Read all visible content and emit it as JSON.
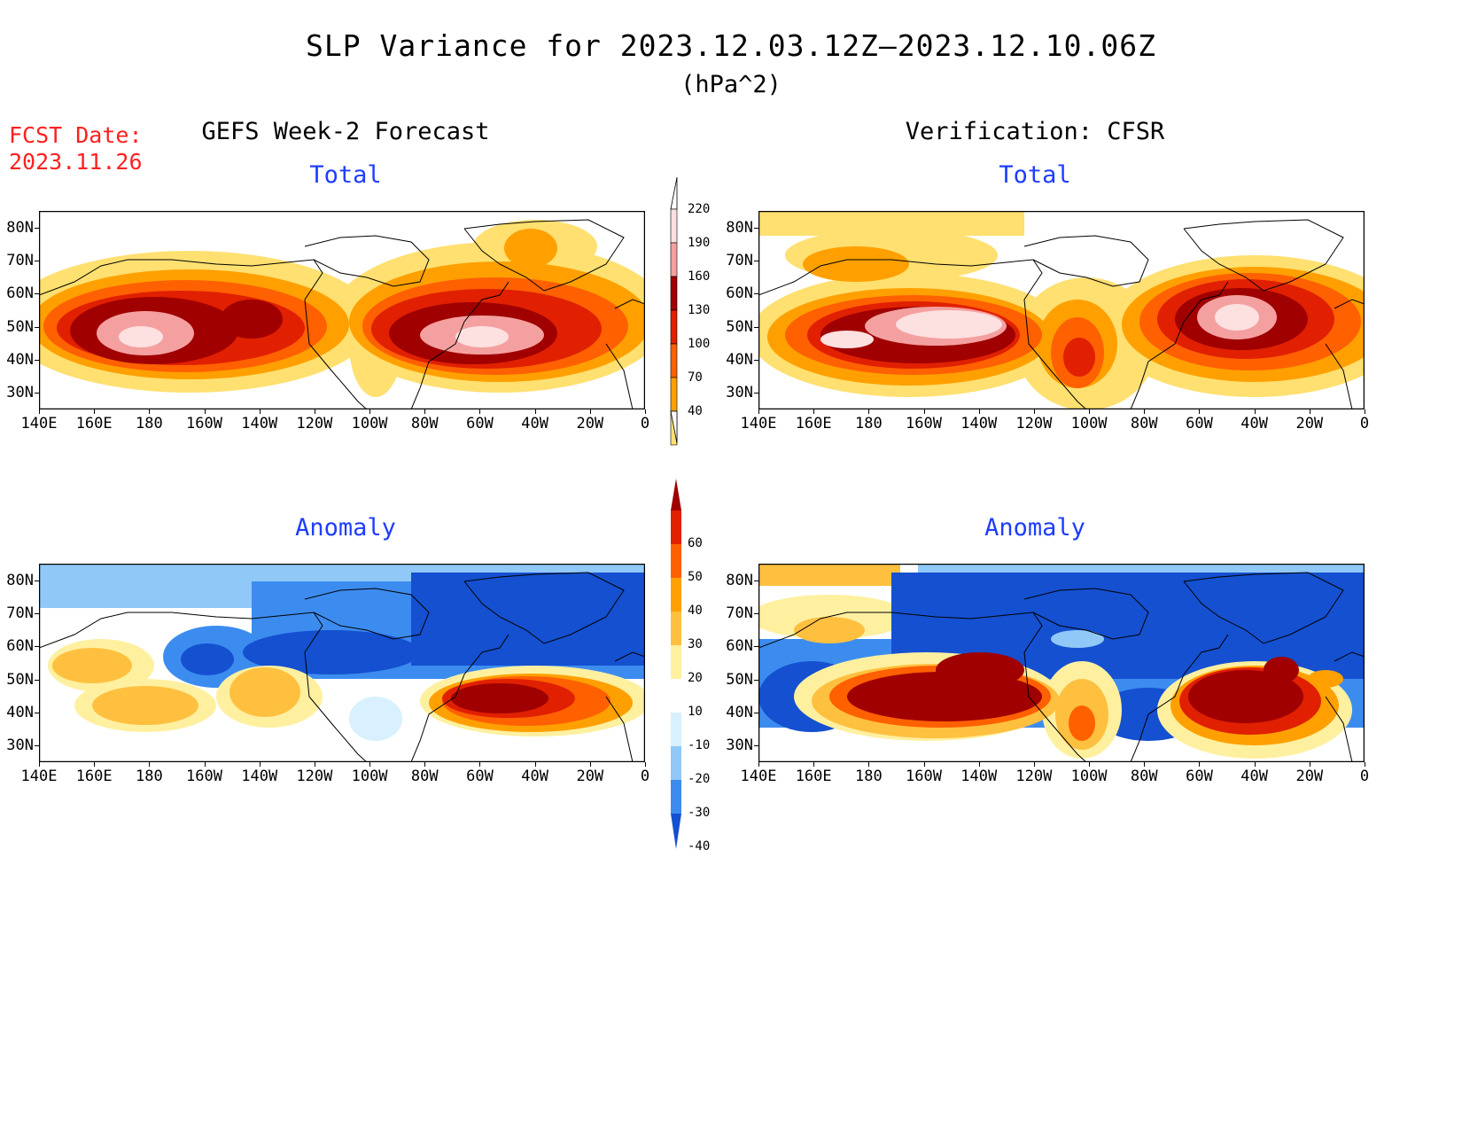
{
  "header": {
    "title": "SLP Variance for 2023.12.03.12Z–2023.12.10.06Z",
    "units": "(hPa^2)",
    "fcst_label": "FCST Date:",
    "fcst_date": "2023.11.26"
  },
  "columns": {
    "left_title": "GEFS Week-2 Forecast",
    "right_title": "Verification: CFSR"
  },
  "panels": {
    "total_label": "Total",
    "anomaly_label": "Anomaly"
  },
  "axes": {
    "lat_ticks": [
      "80N",
      "70N",
      "60N",
      "50N",
      "40N",
      "30N"
    ],
    "lon_ticks": [
      "140E",
      "160E",
      "180",
      "160W",
      "140W",
      "120W",
      "100W",
      "80W",
      "60W",
      "40W",
      "20W",
      "0"
    ]
  },
  "colorbar_total": {
    "levels": [
      "220",
      "190",
      "160",
      "130",
      "100",
      "70",
      "40"
    ],
    "colors": [
      "#fde0e0",
      "#f4a0a0",
      "#a00000",
      "#e02000",
      "#ff6000",
      "#ffa000",
      "#ffe070"
    ]
  },
  "colorbar_anomaly": {
    "levels": [
      "60",
      "50",
      "40",
      "30",
      "20",
      "10",
      "-10",
      "-20",
      "-30",
      "-40"
    ],
    "colors": [
      "#a00000",
      "#e02000",
      "#ff6000",
      "#ffa000",
      "#ffc040",
      "#fff0a0",
      "#ffffff",
      "#d8f0ff",
      "#90c8f8",
      "#3c8cf0",
      "#1450d0"
    ]
  }
}
